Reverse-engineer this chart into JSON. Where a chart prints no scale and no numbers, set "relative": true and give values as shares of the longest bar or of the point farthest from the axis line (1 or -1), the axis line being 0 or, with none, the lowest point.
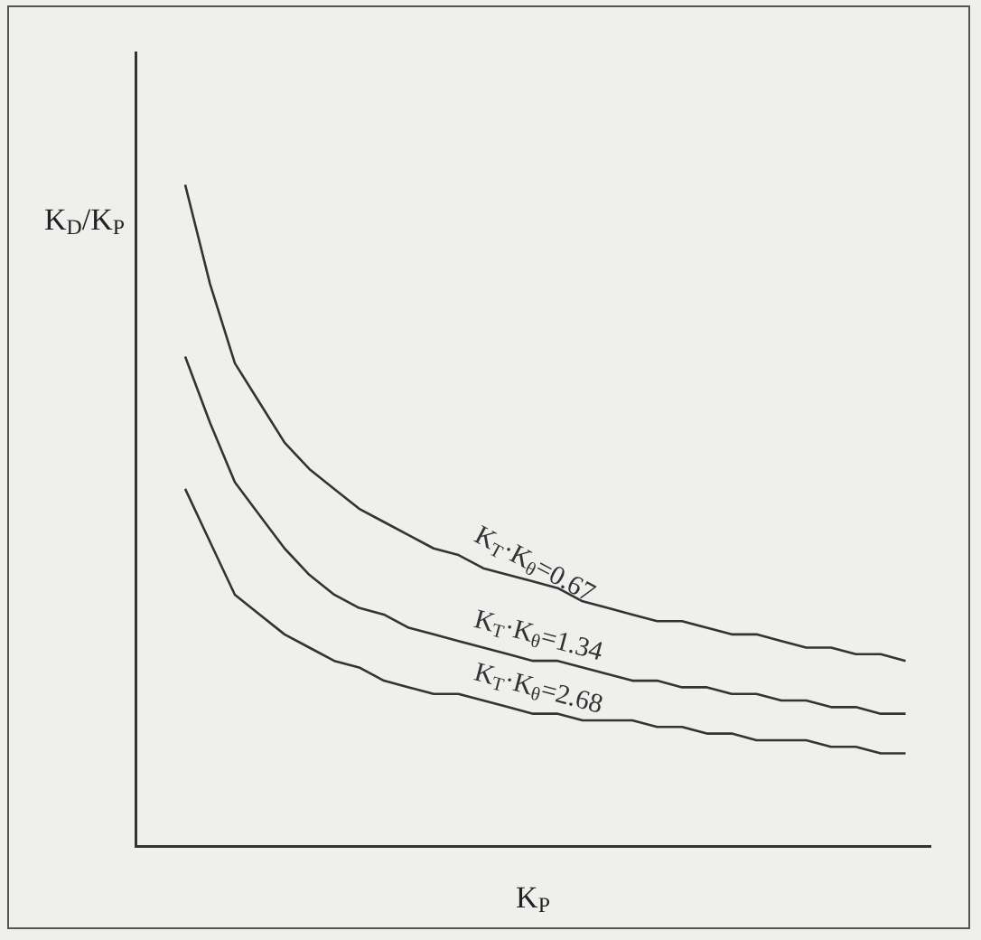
{
  "chart_data": {
    "type": "line",
    "relative": true,
    "xlabel": "K$_{P}$",
    "ylabel": "K$_{D}$/K$_{P}$",
    "categories": [
      null,
      null,
      null,
      null,
      null,
      null,
      null,
      null,
      null,
      null,
      null,
      null,
      null,
      null,
      null,
      null,
      null,
      null,
      null,
      null,
      null,
      null,
      null,
      null,
      null,
      null,
      null,
      null,
      null,
      null,
      null,
      null,
      null
    ],
    "marker": "none",
    "line_style": "solid",
    "grid": false,
    "legend": false,
    "series": [
      {
        "name": "K$_{T}$·K$_{θ}$=0.67",
        "color": "#333333",
        "values": [
          null,
          null,
          1.0,
          0.85,
          0.73,
          0.67,
          0.61,
          0.57,
          0.54,
          0.51,
          0.49,
          0.47,
          0.45,
          0.44,
          0.42,
          0.41,
          0.4,
          0.39,
          0.37,
          0.36,
          0.35,
          0.34,
          0.34,
          0.33,
          0.32,
          0.32,
          0.31,
          0.3,
          0.3,
          0.29,
          0.29,
          0.28,
          null
        ]
      },
      {
        "name": "K$_{T}$·K$_{θ}$=1.34",
        "color": "#333333",
        "values": [
          null,
          null,
          0.74,
          0.64,
          0.55,
          0.5,
          0.45,
          0.41,
          0.38,
          0.36,
          0.35,
          0.33,
          0.32,
          0.31,
          0.3,
          0.29,
          0.28,
          0.28,
          0.27,
          0.26,
          0.25,
          0.25,
          0.24,
          0.24,
          0.23,
          0.23,
          0.22,
          0.22,
          0.21,
          0.21,
          0.2,
          0.2,
          null
        ]
      },
      {
        "name": "K$_{T}$·K$_{θ}$=2.68",
        "color": "#333333",
        "values": [
          null,
          null,
          0.54,
          0.46,
          0.38,
          0.35,
          0.32,
          0.3,
          0.28,
          0.27,
          0.25,
          0.24,
          0.23,
          0.23,
          0.22,
          0.21,
          0.2,
          0.2,
          0.19,
          0.19,
          0.19,
          0.18,
          0.18,
          0.17,
          0.17,
          0.16,
          0.16,
          0.16,
          0.15,
          0.15,
          0.14,
          0.14,
          null
        ]
      }
    ]
  }
}
